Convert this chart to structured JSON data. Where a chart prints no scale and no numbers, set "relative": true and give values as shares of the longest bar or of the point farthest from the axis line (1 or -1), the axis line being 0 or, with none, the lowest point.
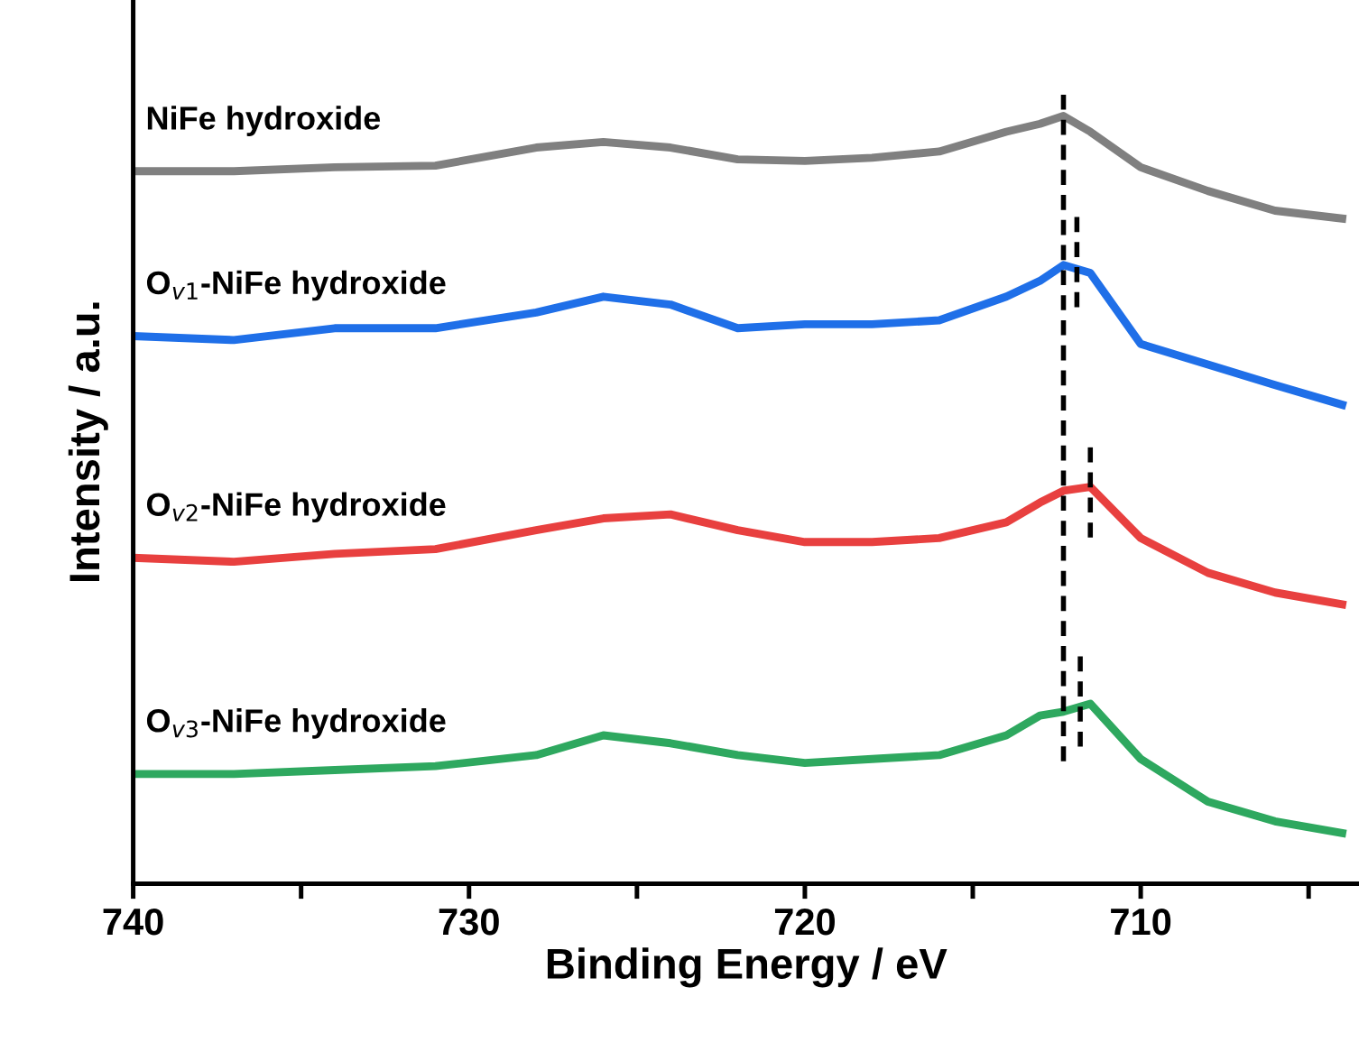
{
  "chart_data": {
    "type": "line",
    "relative": true,
    "xlabel": "Binding Energy / eV",
    "ylabel": "Intensity / a.u.",
    "x": [
      740,
      737,
      734,
      731,
      728,
      726,
      724,
      722,
      720,
      718,
      716,
      714,
      713,
      712.3,
      711.5,
      710,
      708,
      706,
      704
    ],
    "xlim": [
      740,
      703.5
    ],
    "xticks": [
      740,
      {
        "value": 735,
        "label": null
      },
      730,
      {
        "value": 725,
        "label": null
      },
      720,
      {
        "value": 715,
        "label": null
      },
      710,
      {
        "value": 705,
        "label": null
      }
    ],
    "grid": false,
    "legend": false,
    "marker": "none",
    "series": [
      {
        "name": "NiFe hydroxide",
        "color": "#808080",
        "values": [
          0.903,
          0.903,
          0.908,
          0.91,
          0.933,
          0.94,
          0.933,
          0.918,
          0.916,
          0.92,
          0.928,
          0.953,
          0.963,
          0.973,
          0.953,
          0.908,
          0.878,
          0.853,
          0.843
        ]
      },
      {
        "name": "O$_{v1}$-NiFe hydroxide",
        "color": "#1f6fe8",
        "values": [
          0.694,
          0.689,
          0.704,
          0.704,
          0.724,
          0.744,
          0.734,
          0.704,
          0.709,
          0.709,
          0.714,
          0.744,
          0.764,
          0.784,
          0.774,
          0.684,
          0.658,
          0.632,
          0.607
        ]
      },
      {
        "name": "O$_{v2}$-NiFe hydroxide",
        "color": "#e8403f",
        "values": [
          0.413,
          0.408,
          0.418,
          0.424,
          0.448,
          0.463,
          0.468,
          0.448,
          0.433,
          0.433,
          0.438,
          0.458,
          0.483,
          0.498,
          0.503,
          0.438,
          0.394,
          0.369,
          0.354
        ]
      },
      {
        "name": "O$_{v3}$-NiFe hydroxide",
        "color": "#2ea85f",
        "values": [
          0.139,
          0.139,
          0.144,
          0.149,
          0.163,
          0.188,
          0.178,
          0.163,
          0.153,
          0.158,
          0.163,
          0.188,
          0.213,
          0.218,
          0.228,
          0.158,
          0.104,
          0.079,
          0.064
        ]
      },
      {
        "color": "#000000",
        "line_style": "dashed",
        "x": [
          712.3,
          712.3
        ],
        "values": [
          1.0,
          0.155
        ]
      },
      {
        "color": "#000000",
        "line_style": "dashed",
        "x": [
          711.9,
          711.9
        ],
        "values": [
          0.845,
          0.724
        ]
      },
      {
        "color": "#000000",
        "line_style": "dashed",
        "x": [
          711.5,
          711.5
        ],
        "values": [
          0.553,
          0.434
        ]
      },
      {
        "color": "#000000",
        "line_style": "dashed",
        "x": [
          711.8,
          711.8
        ],
        "values": [
          0.288,
          0.164
        ]
      }
    ]
  }
}
